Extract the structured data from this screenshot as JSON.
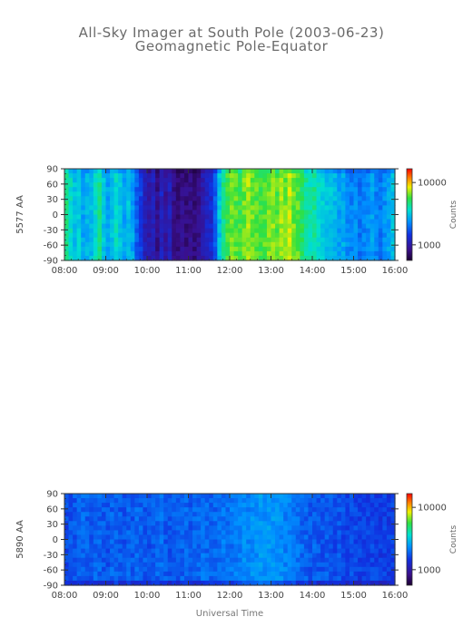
{
  "header": {
    "title": "All-Sky Imager at South Pole (2003-06-23)",
    "subtitle": "Geomagnetic Pole-Equator"
  },
  "chart_data": [
    {
      "type": "heatmap",
      "ylabel": "5577 AA",
      "xlabel": "",
      "x_ticks": [
        "08:00",
        "09:00",
        "10:00",
        "11:00",
        "12:00",
        "13:00",
        "14:00",
        "15:00",
        "16:00"
      ],
      "y_ticks": [
        90,
        60,
        30,
        0,
        -30,
        -60,
        -90
      ],
      "xlim": [
        "08:00",
        "16:00"
      ],
      "ylim": [
        -90,
        90
      ],
      "colorbar": {
        "label": "Counts",
        "ticks": [
          "10000",
          "1000"
        ],
        "scale": "log"
      },
      "time_profile": [
        0.62,
        0.55,
        0.5,
        0.52,
        0.45,
        0.48,
        0.5,
        0.55,
        0.6,
        0.5,
        0.45,
        0.5,
        0.55,
        0.5,
        0.45,
        0.5,
        0.45,
        0.35,
        0.3,
        0.2,
        0.18,
        0.2,
        0.12,
        0.22,
        0.15,
        0.2,
        0.12,
        0.1,
        0.12,
        0.1,
        0.12,
        0.1,
        0.12,
        0.18,
        0.22,
        0.25,
        0.35,
        0.5,
        0.62,
        0.68,
        0.72,
        0.7,
        0.68,
        0.72,
        0.75,
        0.72,
        0.7,
        0.68,
        0.7,
        0.72,
        0.74,
        0.7,
        0.75,
        0.72,
        0.78,
        0.72,
        0.7,
        0.65,
        0.6,
        0.58,
        0.6,
        0.55,
        0.52,
        0.5,
        0.5,
        0.48,
        0.45,
        0.46,
        0.42,
        0.4,
        0.42,
        0.38,
        0.4,
        0.42,
        0.45,
        0.4,
        0.38,
        0.42,
        0.45,
        0.5
      ]
    },
    {
      "type": "heatmap",
      "ylabel": "5890 AA",
      "xlabel": "Universal Time",
      "x_ticks": [
        "08:00",
        "09:00",
        "10:00",
        "11:00",
        "12:00",
        "13:00",
        "14:00",
        "15:00",
        "16:00"
      ],
      "y_ticks": [
        90,
        60,
        30,
        0,
        -30,
        -60,
        -90
      ],
      "xlim": [
        "08:00",
        "16:00"
      ],
      "ylim": [
        -90,
        90
      ],
      "colorbar": {
        "label": "Counts",
        "ticks": [
          "10000",
          "1000"
        ],
        "scale": "log"
      },
      "time_profile": [
        0.32,
        0.33,
        0.34,
        0.35,
        0.36,
        0.35,
        0.34,
        0.36,
        0.35,
        0.34,
        0.33,
        0.35,
        0.36,
        0.34,
        0.33,
        0.35,
        0.34,
        0.36,
        0.35,
        0.34,
        0.33,
        0.34,
        0.35,
        0.36,
        0.34,
        0.33,
        0.35,
        0.34,
        0.35,
        0.36,
        0.34,
        0.35,
        0.36,
        0.37,
        0.36,
        0.35,
        0.36,
        0.37,
        0.38,
        0.37,
        0.38,
        0.39,
        0.4,
        0.41,
        0.4,
        0.42,
        0.41,
        0.43,
        0.42,
        0.44,
        0.43,
        0.42,
        0.41,
        0.4,
        0.39,
        0.38,
        0.37,
        0.36,
        0.35,
        0.34,
        0.35,
        0.34,
        0.33,
        0.34,
        0.33,
        0.32,
        0.33,
        0.32,
        0.31,
        0.32,
        0.31,
        0.3,
        0.31,
        0.3,
        0.31,
        0.3,
        0.29,
        0.3,
        0.29,
        0.3
      ]
    }
  ]
}
